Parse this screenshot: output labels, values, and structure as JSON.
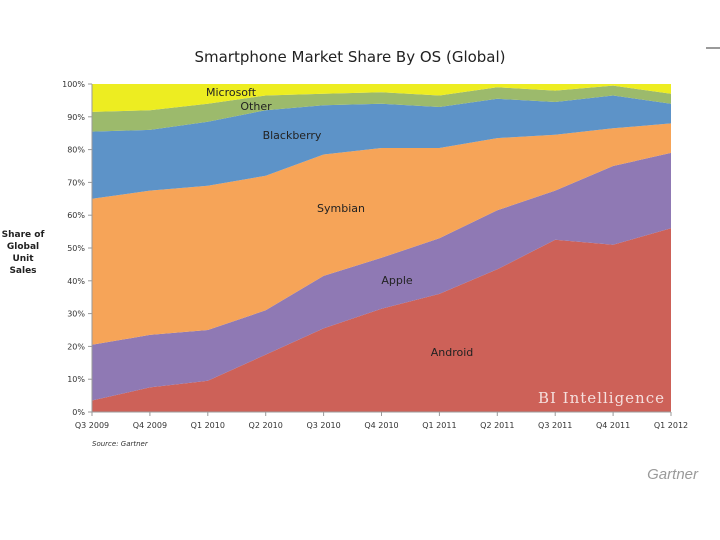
{
  "chart_data": {
    "type": "area",
    "stacked": true,
    "title": "Smartphone Market Share By OS (Global)",
    "ylabel": "Share of Global Unit Sales",
    "xlabel": "",
    "categories": [
      "Q3 2009",
      "Q4 2009",
      "Q1 2010",
      "Q2 2010",
      "Q3 2010",
      "Q4 2010",
      "Q1 2011",
      "Q2 2011",
      "Q3 2011",
      "Q4 2011",
      "Q1 2012"
    ],
    "y_ticks": [
      "0%",
      "10%",
      "20%",
      "30%",
      "40%",
      "50%",
      "60%",
      "70%",
      "80%",
      "90%",
      "100%"
    ],
    "ylim": [
      0,
      100
    ],
    "series": [
      {
        "name": "Android",
        "color": "#cd6158",
        "values": [
          3.5,
          7.5,
          9.5,
          17.5,
          25.5,
          31.5,
          36,
          43.5,
          52.5,
          51,
          56
        ]
      },
      {
        "name": "Apple",
        "color": "#8f79b4",
        "values": [
          17,
          16,
          15.5,
          13.5,
          16,
          15.5,
          17,
          18,
          15,
          24,
          23
        ]
      },
      {
        "name": "Symbian",
        "color": "#f6a458",
        "values": [
          44.5,
          44,
          44,
          41,
          37,
          33.5,
          27.5,
          22,
          17,
          11.5,
          9
        ]
      },
      {
        "name": "Blackberry",
        "color": "#5d93c8",
        "values": [
          20.5,
          18.5,
          19.5,
          20,
          15,
          13.5,
          12.5,
          12,
          10,
          10,
          6
        ]
      },
      {
        "name": "Other",
        "color": "#9cba6c",
        "values": [
          6,
          6,
          5.5,
          4.5,
          3.5,
          3.5,
          3.5,
          3.5,
          3.5,
          3,
          3
        ]
      },
      {
        "name": "Microsoft",
        "color": "#eded21",
        "values": [
          8.5,
          8,
          6,
          3.5,
          3,
          2.5,
          3.5,
          1,
          2,
          0.5,
          3
        ]
      }
    ],
    "series_labels": [
      "Microsoft",
      "Other",
      "Blackberry",
      "Symbian",
      "Apple",
      "Android"
    ],
    "grid": false,
    "watermark": "BI Intelligence",
    "source": "Source: Gartner"
  },
  "caption": "Gartner"
}
